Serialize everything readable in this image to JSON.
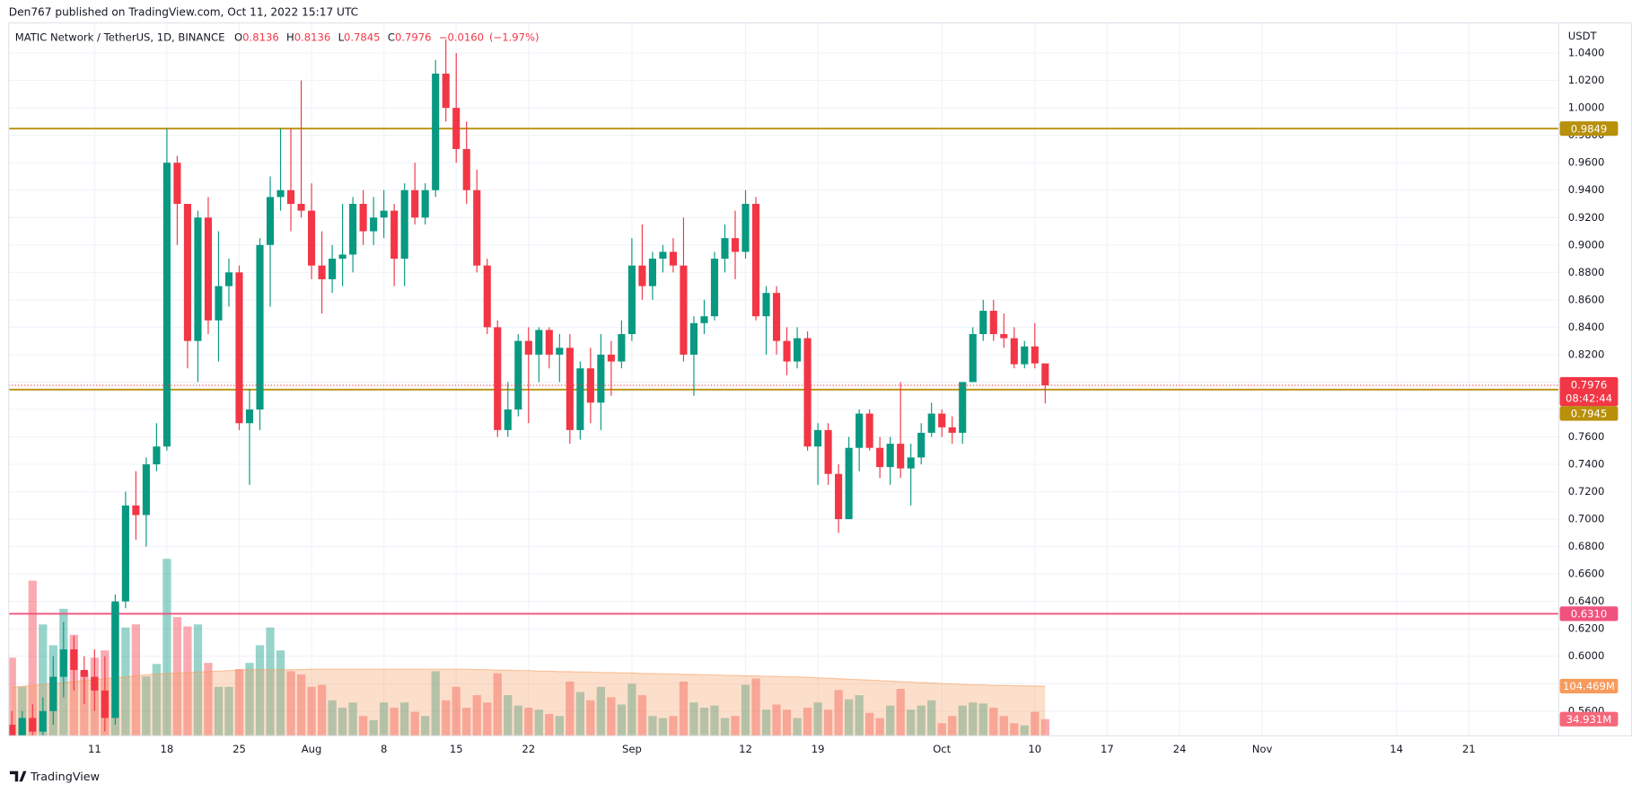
{
  "chart_data": {
    "type": "candlestick",
    "published": "Den767 published on TradingView.com, Oct 11, 2022 15:17 UTC",
    "symbol": "MATIC Network / TetherUS, 1D, BINANCE",
    "ohlc": [
      {
        "label": "O",
        "value": 0.8136
      },
      {
        "label": "H",
        "value": 0.8136
      },
      {
        "label": "L",
        "value": 0.7845
      },
      {
        "label": "C",
        "value": 0.7976
      }
    ],
    "change": {
      "value": -0.016,
      "label": "−0.0160"
    },
    "change_percent": {
      "value": -1.97,
      "label": "(−1.97%)"
    },
    "currency": "USDT",
    "brand": "TradingView",
    "up_color": "#089981",
    "down_color": "#f23645",
    "volume_up_color": "rgba(8,153,129,0.42)",
    "volume_down_color": "rgba(242,54,69,0.42)",
    "volume_ma_color": "#f79a5c",
    "grid": true,
    "xlim": [
      "2022-07-03",
      "2022-11-30"
    ],
    "ylim": [
      0.542,
      1.062
    ],
    "y2lim": [
      0,
      1500
    ],
    "x": [
      "2022-07-03",
      "2022-07-04",
      "2022-07-05",
      "2022-07-06",
      "2022-07-07",
      "2022-07-08",
      "2022-07-09",
      "2022-07-10",
      "2022-07-11",
      "2022-07-12",
      "2022-07-13",
      "2022-07-14",
      "2022-07-15",
      "2022-07-16",
      "2022-07-17",
      "2022-07-18",
      "2022-07-19",
      "2022-07-20",
      "2022-07-21",
      "2022-07-22",
      "2022-07-23",
      "2022-07-24",
      "2022-07-25",
      "2022-07-26",
      "2022-07-27",
      "2022-07-28",
      "2022-07-29",
      "2022-07-30",
      "2022-07-31",
      "2022-08-01",
      "2022-08-02",
      "2022-08-03",
      "2022-08-04",
      "2022-08-05",
      "2022-08-06",
      "2022-08-07",
      "2022-08-08",
      "2022-08-09",
      "2022-08-10",
      "2022-08-11",
      "2022-08-12",
      "2022-08-13",
      "2022-08-14",
      "2022-08-15",
      "2022-08-16",
      "2022-08-17",
      "2022-08-18",
      "2022-08-19",
      "2022-08-20",
      "2022-08-21",
      "2022-08-22",
      "2022-08-23",
      "2022-08-24",
      "2022-08-25",
      "2022-08-26",
      "2022-08-27",
      "2022-08-28",
      "2022-08-29",
      "2022-08-30",
      "2022-08-31",
      "2022-09-01",
      "2022-09-02",
      "2022-09-03",
      "2022-09-04",
      "2022-09-05",
      "2022-09-06",
      "2022-09-07",
      "2022-09-08",
      "2022-09-09",
      "2022-09-10",
      "2022-09-11",
      "2022-09-12",
      "2022-09-13",
      "2022-09-14",
      "2022-09-15",
      "2022-09-16",
      "2022-09-17",
      "2022-09-18",
      "2022-09-19",
      "2022-09-20",
      "2022-09-21",
      "2022-09-22",
      "2022-09-23",
      "2022-09-24",
      "2022-09-25",
      "2022-09-26",
      "2022-09-27",
      "2022-09-28",
      "2022-09-29",
      "2022-09-30",
      "2022-10-01",
      "2022-10-02",
      "2022-10-03",
      "2022-10-04",
      "2022-10-05",
      "2022-10-06",
      "2022-10-07",
      "2022-10-08",
      "2022-10-09",
      "2022-10-10",
      "2022-10-11"
    ],
    "open": [
      0.55,
      0.54,
      0.555,
      0.545,
      0.56,
      0.585,
      0.605,
      0.59,
      0.585,
      0.575,
      0.555,
      0.64,
      0.71,
      0.703,
      0.74,
      0.753,
      0.96,
      0.93,
      0.83,
      0.92,
      0.845,
      0.87,
      0.88,
      0.77,
      0.78,
      0.9,
      0.935,
      0.94,
      0.93,
      0.925,
      0.885,
      0.875,
      0.89,
      0.893,
      0.93,
      0.91,
      0.92,
      0.925,
      0.89,
      0.94,
      0.92,
      0.94,
      1.025,
      1.0,
      0.97,
      0.94,
      0.885,
      0.84,
      0.765,
      0.78,
      0.83,
      0.82,
      0.838,
      0.82,
      0.825,
      0.765,
      0.81,
      0.785,
      0.82,
      0.815,
      0.835,
      0.885,
      0.87,
      0.89,
      0.895,
      0.885,
      0.82,
      0.843,
      0.848,
      0.89,
      0.905,
      0.895,
      0.93,
      0.848,
      0.865,
      0.83,
      0.815,
      0.832,
      0.753,
      0.765,
      0.733,
      0.7,
      0.752,
      0.777,
      0.752,
      0.738,
      0.755,
      0.737,
      0.745,
      0.763,
      0.777,
      0.767,
      0.763,
      0.8,
      0.835,
      0.852,
      0.835,
      0.832,
      0.813,
      0.826,
      0.8136
    ],
    "high": [
      0.56,
      0.56,
      0.565,
      0.57,
      0.6,
      0.625,
      0.615,
      0.6,
      0.605,
      0.6,
      0.645,
      0.72,
      0.735,
      0.745,
      0.77,
      0.985,
      0.965,
      0.93,
      0.925,
      0.935,
      0.91,
      0.89,
      0.885,
      0.795,
      0.905,
      0.95,
      0.985,
      0.985,
      1.02,
      0.945,
      0.91,
      0.9,
      0.93,
      0.935,
      0.94,
      0.935,
      0.94,
      0.93,
      0.945,
      0.96,
      0.945,
      1.035,
      1.05,
      1.04,
      0.99,
      0.955,
      0.89,
      0.845,
      0.8,
      0.835,
      0.84,
      0.84,
      0.84,
      0.835,
      0.835,
      0.815,
      0.825,
      0.835,
      0.83,
      0.845,
      0.905,
      0.915,
      0.895,
      0.9,
      0.905,
      0.92,
      0.848,
      0.86,
      0.895,
      0.915,
      0.925,
      0.94,
      0.935,
      0.87,
      0.87,
      0.84,
      0.84,
      0.837,
      0.77,
      0.77,
      0.74,
      0.76,
      0.78,
      0.78,
      0.76,
      0.76,
      0.8,
      0.755,
      0.77,
      0.785,
      0.78,
      0.775,
      0.8,
      0.84,
      0.86,
      0.86,
      0.85,
      0.84,
      0.83,
      0.843,
      0.8136
    ],
    "low": [
      0.535,
      0.535,
      0.54,
      0.54,
      0.55,
      0.57,
      0.575,
      0.565,
      0.56,
      0.545,
      0.55,
      0.635,
      0.685,
      0.68,
      0.735,
      0.75,
      0.9,
      0.81,
      0.8,
      0.835,
      0.815,
      0.855,
      0.765,
      0.725,
      0.765,
      0.855,
      0.925,
      0.91,
      0.92,
      0.875,
      0.85,
      0.865,
      0.87,
      0.88,
      0.9,
      0.9,
      0.905,
      0.87,
      0.87,
      0.915,
      0.915,
      0.935,
      0.99,
      0.96,
      0.93,
      0.88,
      0.835,
      0.76,
      0.76,
      0.775,
      0.77,
      0.8,
      0.81,
      0.8,
      0.755,
      0.758,
      0.77,
      0.765,
      0.79,
      0.81,
      0.83,
      0.86,
      0.86,
      0.88,
      0.88,
      0.815,
      0.79,
      0.835,
      0.845,
      0.88,
      0.875,
      0.89,
      0.845,
      0.82,
      0.82,
      0.805,
      0.81,
      0.75,
      0.725,
      0.725,
      0.69,
      0.7,
      0.735,
      0.75,
      0.73,
      0.725,
      0.73,
      0.71,
      0.74,
      0.76,
      0.76,
      0.755,
      0.755,
      0.8,
      0.83,
      0.83,
      0.825,
      0.81,
      0.81,
      0.81,
      0.7845
    ],
    "close": [
      0.54,
      0.555,
      0.545,
      0.56,
      0.585,
      0.605,
      0.59,
      0.585,
      0.575,
      0.555,
      0.64,
      0.71,
      0.703,
      0.74,
      0.753,
      0.96,
      0.93,
      0.83,
      0.92,
      0.845,
      0.87,
      0.88,
      0.77,
      0.78,
      0.9,
      0.935,
      0.94,
      0.93,
      0.925,
      0.885,
      0.875,
      0.89,
      0.893,
      0.93,
      0.91,
      0.92,
      0.925,
      0.89,
      0.94,
      0.92,
      0.94,
      1.025,
      1.0,
      0.97,
      0.94,
      0.885,
      0.84,
      0.765,
      0.78,
      0.83,
      0.82,
      0.838,
      0.82,
      0.825,
      0.765,
      0.81,
      0.785,
      0.82,
      0.815,
      0.835,
      0.885,
      0.87,
      0.89,
      0.895,
      0.885,
      0.82,
      0.843,
      0.848,
      0.89,
      0.905,
      0.895,
      0.93,
      0.848,
      0.865,
      0.83,
      0.815,
      0.832,
      0.753,
      0.765,
      0.733,
      0.7,
      0.752,
      0.777,
      0.752,
      0.738,
      0.755,
      0.737,
      0.745,
      0.763,
      0.777,
      0.767,
      0.763,
      0.8,
      0.835,
      0.852,
      0.835,
      0.832,
      0.813,
      0.826,
      0.8136,
      0.7976
    ],
    "volume": [
      164.3,
      102.9,
      326.3,
      234.3,
      190.5,
      267.2,
      212.4,
      135.8,
      164.3,
      179.6,
      278.1,
      227.8,
      234.3,
      124.8,
      151.1,
      372.3,
      249.7,
      230,
      234.3,
      153.3,
      102.9,
      102.9,
      140.2,
      153.3,
      190.5,
      227.8,
      179.6,
      135.8,
      129.2,
      102.9,
      107.3,
      74.5,
      59.1,
      70.1,
      41.6,
      32.9,
      70.1,
      59.1,
      70.1,
      50.4,
      41.6,
      135.8,
      74.5,
      102.9,
      59.1,
      85.4,
      70.1,
      131.4,
      85.4,
      63.5,
      59.1,
      54.8,
      46,
      41.6,
      113.9,
      92,
      74.5,
      102.9,
      81,
      65.7,
      109.5,
      85.4,
      41.6,
      37.2,
      41.6,
      113.9,
      70.1,
      59.1,
      63.5,
      37.2,
      41.6,
      107.3,
      120.5,
      54.8,
      65.7,
      54.8,
      37.2,
      59.1,
      70.1,
      54.8,
      96.4,
      76.7,
      85.4,
      48.2,
      37.2,
      63.5,
      98.6,
      54.8,
      63.5,
      74.5,
      26.3,
      41.6,
      63.5,
      70.1,
      67.9,
      59.1,
      41.6,
      26.3,
      21.9,
      50.4,
      34.931
    ],
    "volume_ma": [
      102,
      104,
      106,
      108,
      110,
      112,
      114,
      116,
      118,
      120,
      122,
      124,
      126,
      128,
      130,
      131,
      132,
      133,
      134,
      135,
      136,
      137,
      138,
      139,
      139,
      139,
      139,
      139,
      139,
      140,
      140,
      140,
      140,
      140,
      140,
      140,
      140,
      140,
      140,
      140,
      140,
      140,
      140,
      140,
      140,
      139,
      139,
      138,
      138,
      137,
      137,
      136,
      136,
      135,
      135,
      134,
      134,
      133,
      133,
      132,
      132,
      131,
      131,
      130,
      130,
      129,
      129,
      128,
      128,
      127,
      127,
      126,
      126,
      125,
      125,
      124,
      124,
      123,
      122,
      121,
      120,
      119,
      118,
      117,
      116,
      115,
      114,
      113,
      112,
      111,
      110,
      109,
      108,
      107,
      107,
      106,
      106,
      105,
      105,
      104.6,
      104.469
    ],
    "xticks": [
      {
        "value": "2022-07-11",
        "label": "11"
      },
      {
        "value": "2022-07-18",
        "label": "18"
      },
      {
        "value": "2022-07-25",
        "label": "25"
      },
      {
        "value": "2022-08-01",
        "label": "Aug"
      },
      {
        "value": "2022-08-08",
        "label": "8"
      },
      {
        "value": "2022-08-15",
        "label": "15"
      },
      {
        "value": "2022-08-22",
        "label": "22"
      },
      {
        "value": "2022-09-01",
        "label": "Sep"
      },
      {
        "value": "2022-09-12",
        "label": "12"
      },
      {
        "value": "2022-09-19",
        "label": "19"
      },
      {
        "value": "2022-10-01",
        "label": "Oct"
      },
      {
        "value": "2022-10-10",
        "label": "10"
      },
      {
        "value": "2022-10-17",
        "label": "17"
      },
      {
        "value": "2022-10-24",
        "label": "24"
      },
      {
        "value": "2022-11-01",
        "label": "Nov"
      },
      {
        "value": "2022-11-14",
        "label": "14"
      },
      {
        "value": "2022-11-21",
        "label": "21"
      }
    ],
    "yticks": [
      {
        "value": 0.56,
        "label": "0.5600"
      },
      {
        "value": 0.58,
        "label": "0.5800"
      },
      {
        "value": 0.6,
        "label": "0.6000"
      },
      {
        "value": 0.62,
        "label": "0.6200"
      },
      {
        "value": 0.64,
        "label": "0.6400"
      },
      {
        "value": 0.66,
        "label": "0.6600"
      },
      {
        "value": 0.68,
        "label": "0.6800"
      },
      {
        "value": 0.7,
        "label": "0.7000"
      },
      {
        "value": 0.72,
        "label": "0.7200"
      },
      {
        "value": 0.74,
        "label": "0.7400"
      },
      {
        "value": 0.76,
        "label": "0.7600"
      },
      {
        "value": 0.78,
        "label": "0.7800"
      },
      {
        "value": 0.8,
        "label": "0.8000"
      },
      {
        "value": 0.82,
        "label": "0.8200"
      },
      {
        "value": 0.84,
        "label": "0.8400"
      },
      {
        "value": 0.86,
        "label": "0.8600"
      },
      {
        "value": 0.88,
        "label": "0.8800"
      },
      {
        "value": 0.9,
        "label": "0.9000"
      },
      {
        "value": 0.92,
        "label": "0.9200"
      },
      {
        "value": 0.94,
        "label": "0.9400"
      },
      {
        "value": 0.96,
        "label": "0.9600"
      },
      {
        "value": 0.98,
        "label": "0.9800"
      },
      {
        "value": 1.0,
        "label": "1.0000"
      },
      {
        "value": 1.02,
        "label": "1.0200"
      },
      {
        "value": 1.04,
        "label": "1.0400"
      }
    ],
    "price_lines": [
      {
        "value": 0.9849,
        "label": "0.9849",
        "color": "#b8900a"
      },
      {
        "value": 0.7945,
        "label": "0.7945",
        "color": "#b8900a"
      },
      {
        "value": 0.631,
        "label": "0.6310",
        "color": "#f0527e"
      }
    ],
    "last_price": {
      "value": 0.7976,
      "label": "0.7976",
      "countdown": "08:42:44",
      "color": "#f23645"
    },
    "volume_ma_label": {
      "value": 104.469,
      "label": "104.469M",
      "color": "#f79a5c"
    },
    "last_volume_label": {
      "value": 34.931,
      "label": "34.931M",
      "color": "#f5677a"
    }
  }
}
